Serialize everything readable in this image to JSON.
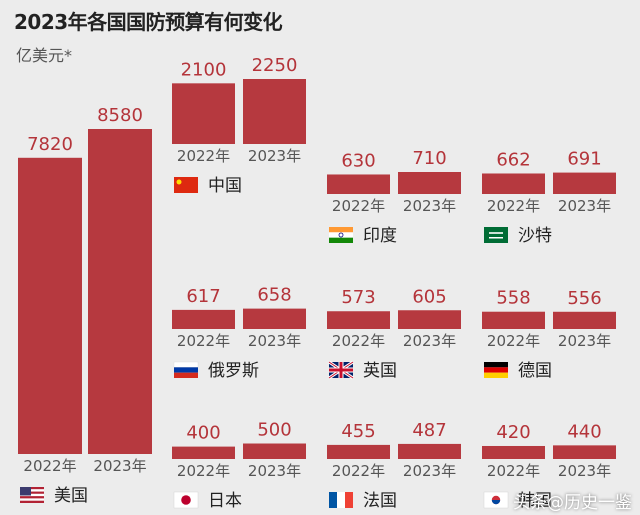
{
  "chart_data": {
    "type": "bar",
    "title": "2023年各国国防预算有何变化",
    "unit": "亿美元*",
    "categories": [
      "2022年",
      "2023年"
    ],
    "countries": [
      {
        "name": "美国",
        "flag": "us-flag-icon",
        "values": [
          7820,
          8580
        ]
      },
      {
        "name": "中国",
        "flag": "china-flag-icon",
        "values": [
          2100,
          2250
        ]
      },
      {
        "name": "印度",
        "flag": "india-flag-icon",
        "values": [
          630,
          710
        ]
      },
      {
        "name": "沙特",
        "flag": "saudi-flag-icon",
        "values": [
          662,
          691
        ]
      },
      {
        "name": "俄罗斯",
        "flag": "russia-flag-icon",
        "values": [
          617,
          658
        ]
      },
      {
        "name": "英国",
        "flag": "uk-flag-icon",
        "values": [
          573,
          605
        ]
      },
      {
        "name": "德国",
        "flag": "germany-flag-icon",
        "values": [
          558,
          556
        ]
      },
      {
        "name": "日本",
        "flag": "japan-flag-icon",
        "values": [
          400,
          500
        ]
      },
      {
        "name": "法国",
        "flag": "france-flag-icon",
        "values": [
          455,
          487
        ]
      },
      {
        "name": "韩国",
        "flag": "korea-flag-icon",
        "values": [
          420,
          440
        ]
      }
    ],
    "bar_color": "#b6393f",
    "value_color": "#b4343a"
  },
  "watermark": "头条@历史一鉴"
}
